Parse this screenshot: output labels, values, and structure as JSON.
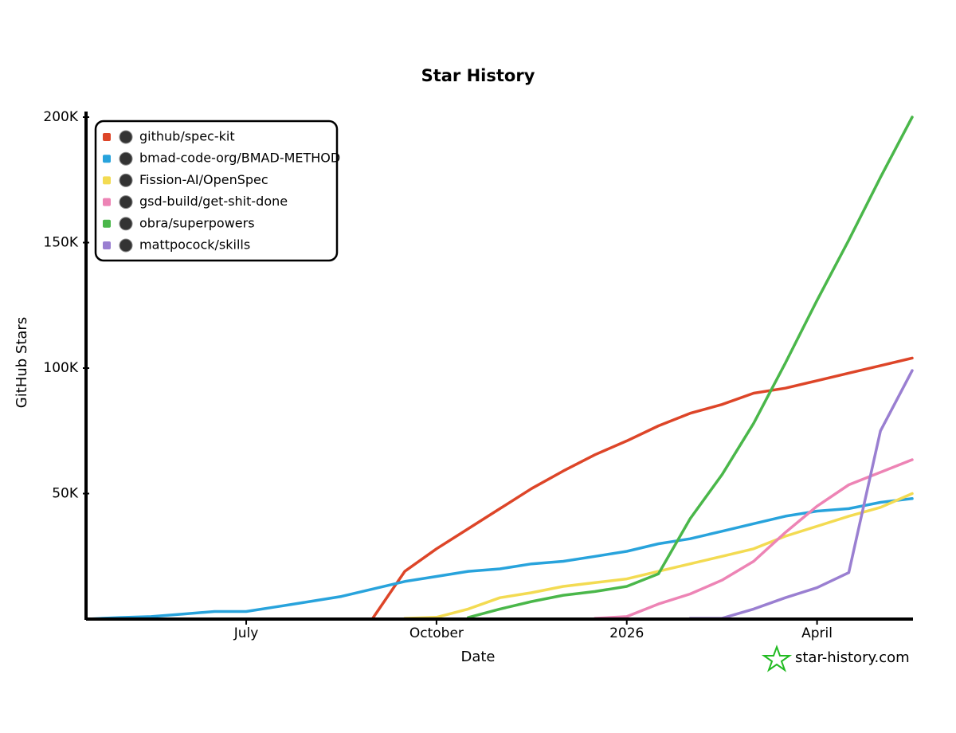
{
  "chart_data": {
    "type": "line",
    "title": "Star History",
    "x_label": "Date",
    "y_label": "GitHub Stars",
    "watermark": "star-history.com",
    "categories": [
      null,
      null,
      null,
      null,
      null,
      "July",
      null,
      null,
      null,
      null,
      null,
      "October",
      null,
      null,
      null,
      null,
      null,
      "2026",
      null,
      null,
      null,
      null,
      null,
      "April",
      null,
      null,
      null
    ],
    "ylim": [
      0,
      200000
    ],
    "yticks": [
      {
        "value": 50000,
        "label": "50K"
      },
      {
        "value": 100000,
        "label": "100K"
      },
      {
        "value": 150000,
        "label": "150K"
      },
      {
        "value": 200000,
        "label": "200K"
      }
    ],
    "legend": "upper left",
    "series": [
      {
        "name": "github/spec-kit",
        "color": "#dd4528",
        "values": [
          null,
          null,
          null,
          null,
          null,
          null,
          null,
          null,
          null,
          500,
          19000,
          28000,
          36000,
          44000,
          52000,
          59000,
          65500,
          71000,
          77000,
          82000,
          85500,
          90000,
          92000,
          95000,
          98000,
          101000,
          104000
        ]
      },
      {
        "name": "bmad-code-org/BMAD-METHOD",
        "color": "#28a3dc",
        "values": [
          0,
          600,
          1000,
          2000,
          3000,
          3000,
          5000,
          7000,
          9000,
          12000,
          15000,
          17000,
          19000,
          20000,
          22000,
          23000,
          25000,
          27000,
          30000,
          32000,
          35000,
          38000,
          41000,
          43000,
          44000,
          46500,
          48000
        ]
      },
      {
        "name": "Fission-AI/OpenSpec",
        "color": "#f3db52",
        "values": [
          null,
          null,
          null,
          null,
          null,
          null,
          null,
          null,
          null,
          null,
          300,
          700,
          4000,
          8500,
          10500,
          13000,
          14500,
          16000,
          19000,
          22000,
          25000,
          28000,
          33000,
          37000,
          41000,
          44500,
          50000
        ]
      },
      {
        "name": "gsd-build/get-shit-done",
        "color": "#ed84b5",
        "values": [
          null,
          null,
          null,
          null,
          null,
          null,
          null,
          null,
          null,
          null,
          null,
          null,
          null,
          null,
          null,
          null,
          300,
          1000,
          6000,
          10000,
          15500,
          23000,
          34500,
          45000,
          53500,
          58500,
          63500
        ]
      },
      {
        "name": "obra/superpowers",
        "color": "#4ab74a",
        "values": [
          null,
          null,
          null,
          null,
          null,
          null,
          null,
          null,
          null,
          null,
          null,
          null,
          600,
          4000,
          7000,
          9500,
          11000,
          13000,
          18000,
          40000,
          57500,
          78000,
          102000,
          127000,
          151000,
          176000,
          200000
        ]
      },
      {
        "name": "mattpocock/skills",
        "color": "#9a7fd1",
        "values": [
          null,
          null,
          null,
          null,
          null,
          null,
          null,
          null,
          null,
          null,
          null,
          null,
          null,
          null,
          null,
          null,
          null,
          null,
          null,
          300,
          300,
          4000,
          8500,
          12500,
          18500,
          75000,
          99000
        ]
      }
    ]
  }
}
